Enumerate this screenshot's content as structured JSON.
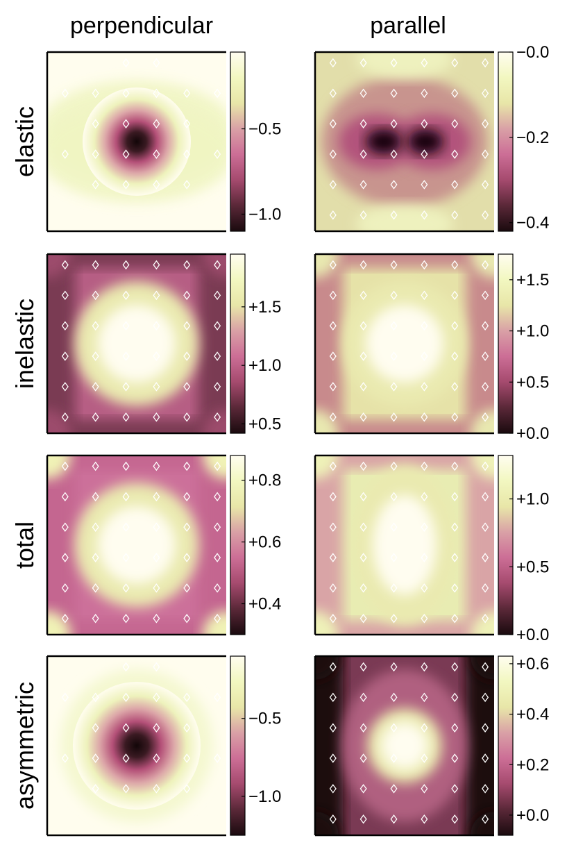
{
  "chart_data": {
    "type": "heatmap",
    "columns": [
      "perpendicular",
      "parallel"
    ],
    "rows": [
      "elastic",
      "inelastic",
      "total",
      "asymmetric"
    ],
    "panels": [
      {
        "row": "elastic",
        "column": "perpendicular",
        "range": [
          -1.1,
          -0.05
        ],
        "ticks": [
          "−0.5",
          "−1.0"
        ],
        "tick_values": [
          -0.5,
          -1.0
        ],
        "pattern": "center-dark",
        "markers": "sparse"
      },
      {
        "row": "elastic",
        "column": "parallel",
        "range": [
          -0.42,
          0.0
        ],
        "ticks": [
          "−0.0",
          "−0.2",
          "−0.4"
        ],
        "tick_values": [
          0.0,
          -0.2,
          -0.4
        ],
        "pattern": "butterfly",
        "markers": "full"
      },
      {
        "row": "inelastic",
        "column": "perpendicular",
        "range": [
          0.42,
          1.95
        ],
        "ticks": [
          "+1.5",
          "+1.0",
          "+0.5"
        ],
        "tick_values": [
          1.5,
          1.0,
          0.5
        ],
        "pattern": "center-bright",
        "markers": "full"
      },
      {
        "row": "inelastic",
        "column": "parallel",
        "range": [
          0.0,
          1.75
        ],
        "ticks": [
          "+1.5",
          "+1.0",
          "+0.5",
          "+0.0"
        ],
        "tick_values": [
          1.5,
          1.0,
          0.5,
          0.0
        ],
        "pattern": "center-bright",
        "markers": "full"
      },
      {
        "row": "total",
        "column": "perpendicular",
        "range": [
          0.3,
          0.88
        ],
        "ticks": [
          "+0.8",
          "+0.6",
          "+0.4"
        ],
        "tick_values": [
          0.8,
          0.6,
          0.4
        ],
        "pattern": "center-bright",
        "markers": "full"
      },
      {
        "row": "total",
        "column": "parallel",
        "range": [
          0.0,
          1.32
        ],
        "ticks": [
          "+1.0",
          "+0.5",
          "+0.0"
        ],
        "tick_values": [
          1.0,
          0.5,
          0.0
        ],
        "pattern": "center-bright-elongated",
        "markers": "full"
      },
      {
        "row": "asymmetric",
        "column": "perpendicular",
        "range": [
          -1.25,
          -0.1
        ],
        "ticks": [
          "−0.5",
          "−1.0"
        ],
        "tick_values": [
          -0.5,
          -1.0
        ],
        "pattern": "center-dark",
        "markers": "sparse"
      },
      {
        "row": "asymmetric",
        "column": "parallel",
        "range": [
          -0.08,
          0.63
        ],
        "ticks": [
          "+0.6",
          "+0.4",
          "+0.2",
          "+0.0"
        ],
        "tick_values": [
          0.6,
          0.4,
          0.2,
          0.0
        ],
        "pattern": "center-bright",
        "markers": "full"
      }
    ],
    "colormap": [
      "#1a0a0e",
      "#5a2838",
      "#a54a6e",
      "#cc6e96",
      "#d9a0a6",
      "#e8e6a8",
      "#f2f7c0",
      "#fffdf0"
    ],
    "marker_color": "#ffffff",
    "grid": false
  }
}
